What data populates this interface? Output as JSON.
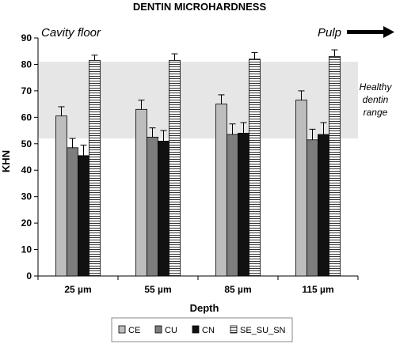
{
  "chart_data": {
    "type": "bar",
    "title": "DENTIN MICROHARDNESS",
    "xlabel": "Depth",
    "ylabel": "KHN",
    "ylim": [
      0,
      90
    ],
    "yticks": [
      0,
      10,
      20,
      30,
      40,
      50,
      60,
      70,
      80,
      90
    ],
    "grid": false,
    "categories": [
      "25 µm",
      "55 µm",
      "85 µm",
      "115 µm"
    ],
    "series": [
      {
        "name": "CE",
        "values": [
          60.5,
          63.0,
          65.0,
          66.5
        ],
        "errors": [
          3.5,
          3.5,
          3.5,
          3.5
        ],
        "fill": "#bdbdbd",
        "pattern": "solid"
      },
      {
        "name": "CU",
        "values": [
          48.5,
          52.5,
          53.5,
          51.5
        ],
        "errors": [
          3.5,
          3.5,
          4.0,
          4.0
        ],
        "fill": "#7d7d7d",
        "pattern": "solid"
      },
      {
        "name": "CN",
        "values": [
          45.5,
          51.0,
          54.0,
          53.5
        ],
        "errors": [
          4.0,
          4.0,
          4.0,
          4.5
        ],
        "fill": "#111111",
        "pattern": "solid"
      },
      {
        "name": "SE_SU_SN",
        "values": [
          81.5,
          81.5,
          82.0,
          83.0
        ],
        "errors": [
          2.0,
          2.5,
          2.5,
          2.5
        ],
        "fill": "#ffffff",
        "pattern": "horizontal-lines"
      }
    ],
    "shaded_band": {
      "range": [
        52,
        81
      ],
      "color": "#e6e6e6"
    },
    "annotations": {
      "top_left": "Cavity floor",
      "top_right": "Pulp",
      "band_label": [
        "Healthy",
        "dentin",
        "range"
      ]
    },
    "legend": {
      "placement": "bottom"
    }
  }
}
